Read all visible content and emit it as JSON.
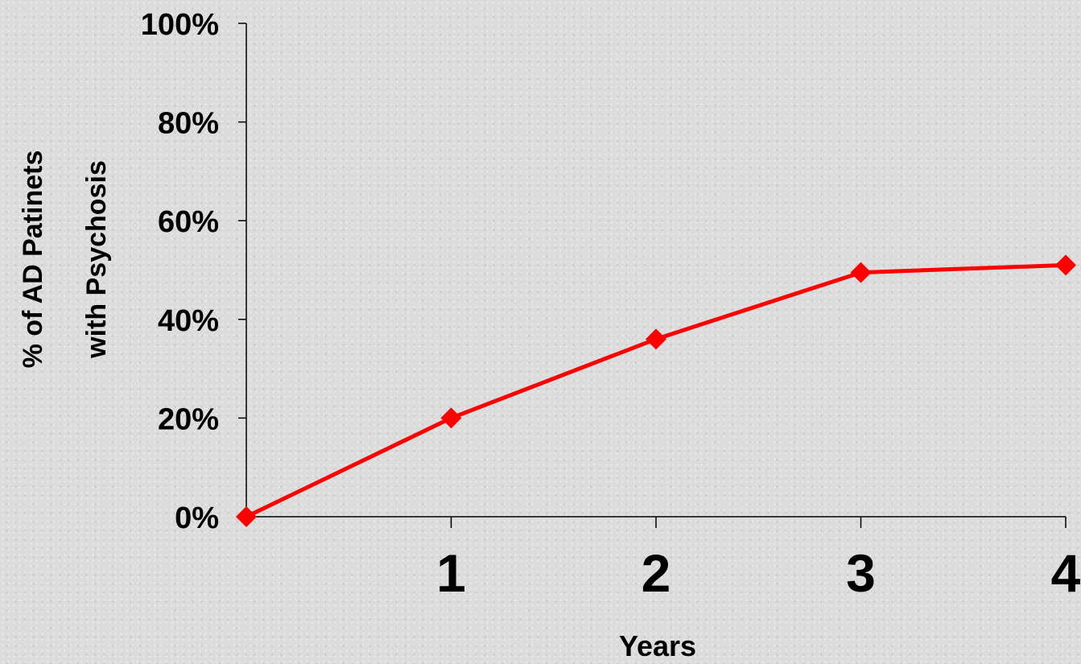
{
  "chart_data": {
    "type": "line",
    "title": "",
    "xlabel": "Years",
    "ylabel": [
      "% of AD Patinets",
      "with Psychosis"
    ],
    "x": [
      0,
      1,
      2,
      3,
      4
    ],
    "x_tick_labels": [
      "1",
      "2",
      "3",
      "4"
    ],
    "y_tick_labels": [
      "0%",
      "20%",
      "40%",
      "60%",
      "80%",
      "100%"
    ],
    "ylim": [
      0,
      100
    ],
    "xlim": [
      0,
      4
    ],
    "grid": false,
    "series": [
      {
        "values": [
          0,
          20,
          36,
          49.5,
          51
        ],
        "color": "#ff0000",
        "marker": "diamond"
      }
    ]
  }
}
